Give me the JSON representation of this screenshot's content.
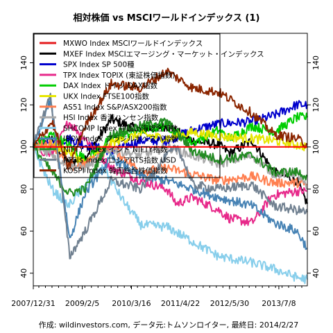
{
  "chart_data": {
    "type": "line",
    "title": "相対株価 vs MSCIワールドインデックス (1)",
    "xlabel": "",
    "ylabel": "",
    "x_tick_labels": [
      "2007/12/31",
      "2009/2/5",
      "2010/3/16",
      "2011/4/22",
      "2012/5/30",
      "2013/7/8"
    ],
    "x_tick_dates": [
      "2007-12-31",
      "2009-02-05",
      "2010-03-16",
      "2011-04-22",
      "2012-05-30",
      "2013-07-08"
    ],
    "xlim": [
      "2007-12-31",
      "2014-02-27"
    ],
    "y_ticks": [
      40,
      60,
      80,
      100,
      120,
      140
    ],
    "ylim": [
      34,
      154
    ],
    "reference_line": 100,
    "grid": false,
    "legend_position": "top-left",
    "series": [
      {
        "name": "MXWO Index MSCIワールドインデックス",
        "color": "#e41a1c",
        "x": [
          "2007-12-31",
          "2014-02-27"
        ],
        "values": [
          100,
          100
        ]
      },
      {
        "name": "MXEF Index MSCIエマージング・マーケット・インデックス",
        "color": "#000000",
        "x": [
          "2007-12-31",
          "2008-06-01",
          "2008-10-15",
          "2009-03-01",
          "2009-10-01",
          "2010-06-01",
          "2011-01-01",
          "2011-08-01",
          "2012-03-01",
          "2012-06-01",
          "2012-12-01",
          "2013-06-01",
          "2013-12-01",
          "2014-02-27"
        ],
        "values": [
          100,
          104,
          92,
          95,
          113,
          108,
          110,
          103,
          101,
          97,
          103,
          88,
          84,
          73
        ]
      },
      {
        "name": "SPX Index SP 500種",
        "color": "#0000cd",
        "x": [
          "2007-12-31",
          "2008-06-01",
          "2008-10-15",
          "2009-03-01",
          "2009-10-01",
          "2010-06-01",
          "2011-01-01",
          "2011-08-01",
          "2012-03-01",
          "2012-12-01",
          "2013-06-01",
          "2013-12-01",
          "2014-02-27"
        ],
        "values": [
          100,
          101,
          104,
          101,
          98,
          103,
          103,
          108,
          111,
          112,
          115,
          120,
          120
        ]
      },
      {
        "name": "TPX Index TOPIX (東証株価指数)",
        "color": "#e7298a",
        "x": [
          "2007-12-31",
          "2008-06-01",
          "2008-10-15",
          "2009-03-01",
          "2009-10-01",
          "2010-06-01",
          "2011-01-01",
          "2011-03-20",
          "2011-08-01",
          "2012-03-01",
          "2012-06-01",
          "2012-12-01",
          "2013-05-20",
          "2013-12-01",
          "2014-02-27"
        ],
        "values": [
          100,
          96,
          112,
          104,
          90,
          84,
          80,
          73,
          76,
          70,
          66,
          64,
          77,
          79,
          79
        ]
      },
      {
        "name": "DAX Index ドイツ DAX指数",
        "color": "#00cd00",
        "x": [
          "2007-12-31",
          "2008-06-01",
          "2008-10-15",
          "2009-03-01",
          "2009-10-01",
          "2010-06-01",
          "2011-01-01",
          "2011-08-01",
          "2012-03-01",
          "2012-06-01",
          "2012-12-01",
          "2013-06-01",
          "2013-12-01",
          "2014-02-27"
        ],
        "values": [
          100,
          106,
          101,
          94,
          104,
          108,
          110,
          102,
          108,
          104,
          110,
          107,
          114,
          114
        ]
      },
      {
        "name": "UKX Index FTSE100指数",
        "color": "#e6e600",
        "x": [
          "2007-12-31",
          "2008-06-01",
          "2008-10-15",
          "2009-03-01",
          "2009-10-01",
          "2010-06-01",
          "2011-01-01",
          "2011-08-01",
          "2012-03-01",
          "2012-12-01",
          "2013-06-01",
          "2013-12-01",
          "2014-02-27"
        ],
        "values": [
          100,
          101,
          98,
          92,
          102,
          106,
          104,
          107,
          105,
          104,
          103,
          101,
          100
        ]
      },
      {
        "name": "AS51 Index S&P/ASX200指数",
        "color": "#ff7f50",
        "x": [
          "2007-12-31",
          "2008-06-01",
          "2008-10-15",
          "2009-03-01",
          "2009-10-01",
          "2010-06-01",
          "2011-01-01",
          "2011-08-01",
          "2012-03-01",
          "2012-12-01",
          "2013-06-01",
          "2013-12-01",
          "2014-02-27"
        ],
        "values": [
          100,
          102,
          90,
          92,
          100,
          88,
          90,
          87,
          84,
          86,
          83,
          83,
          82
        ]
      },
      {
        "name": "HSI Index 香港ハンセン指数",
        "color": "#a9a9a9",
        "x": [
          "2007-12-31",
          "2008-06-01",
          "2008-10-15",
          "2009-03-01",
          "2009-10-01",
          "2010-06-01",
          "2011-01-01",
          "2011-08-01",
          "2012-03-01",
          "2012-12-01",
          "2013-06-01",
          "2013-12-01",
          "2014-02-27"
        ],
        "values": [
          100,
          97,
          91,
          90,
          99,
          96,
          100,
          96,
          92,
          96,
          87,
          88,
          80
        ]
      },
      {
        "name": "SHCOMP Index 中国上海総合指数",
        "color": "#87ceeb",
        "x": [
          "2007-12-31",
          "2008-06-01",
          "2008-10-15",
          "2009-03-01",
          "2009-08-01",
          "2010-01-01",
          "2010-06-01",
          "2011-01-01",
          "2011-08-01",
          "2012-03-01",
          "2012-12-01",
          "2013-06-01",
          "2013-12-01",
          "2014-02-27"
        ],
        "values": [
          100,
          80,
          72,
          82,
          90,
          75,
          63,
          62,
          55,
          48,
          45,
          42,
          38,
          37
        ]
      },
      {
        "name": "IBOV Index ブラジルボベスパ指数",
        "color": "#4682b4",
        "x": [
          "2007-12-31",
          "2008-05-20",
          "2008-10-25",
          "2009-03-01",
          "2009-10-01",
          "2010-06-01",
          "2011-01-01",
          "2011-08-01",
          "2012-03-01",
          "2012-12-01",
          "2013-06-01",
          "2013-12-01",
          "2014-02-27"
        ],
        "values": [
          100,
          122,
          56,
          78,
          95,
          86,
          84,
          80,
          76,
          72,
          64,
          60,
          52
        ]
      },
      {
        "name": "NIFTY Index インド NIFTY指数",
        "color": "#228b22",
        "x": [
          "2007-12-31",
          "2008-06-01",
          "2008-10-15",
          "2009-03-01",
          "2009-10-01",
          "2010-06-01",
          "2011-01-01",
          "2011-08-01",
          "2012-03-01",
          "2012-12-01",
          "2013-06-01",
          "2013-12-01",
          "2014-02-27"
        ],
        "values": [
          100,
          88,
          78,
          80,
          106,
          110,
          112,
          98,
          94,
          96,
          88,
          88,
          86
        ]
      },
      {
        "name": "RTSI$ Index ロシアRTS指数 USD",
        "color": "#708090",
        "x": [
          "2007-12-31",
          "2008-05-20",
          "2008-10-25",
          "2009-03-01",
          "2009-10-01",
          "2010-06-01",
          "2011-01-01",
          "2011-04-01",
          "2011-08-01",
          "2012-03-01",
          "2012-12-01",
          "2013-06-01",
          "2013-12-01",
          "2014-02-27"
        ],
        "values": [
          100,
          125,
          48,
          60,
          84,
          80,
          96,
          100,
          82,
          80,
          82,
          72,
          70,
          69
        ]
      },
      {
        "name": "KOSPI Index 韓国総合株価指数",
        "color": "#8b2500",
        "x": [
          "2007-12-31",
          "2008-06-01",
          "2008-10-15",
          "2009-03-01",
          "2009-10-01",
          "2010-06-01",
          "2011-01-01",
          "2011-08-01",
          "2012-03-01",
          "2012-12-01",
          "2013-06-01",
          "2013-12-01",
          "2014-02-27"
        ],
        "values": [
          100,
          112,
          90,
          110,
          130,
          128,
          136,
          128,
          126,
          116,
          106,
          104,
          101
        ]
      }
    ]
  },
  "footer": {
    "credit": "作成: wildinvestors.com, データ元:トムソンロイター, 最終日: 2014/2/27"
  }
}
